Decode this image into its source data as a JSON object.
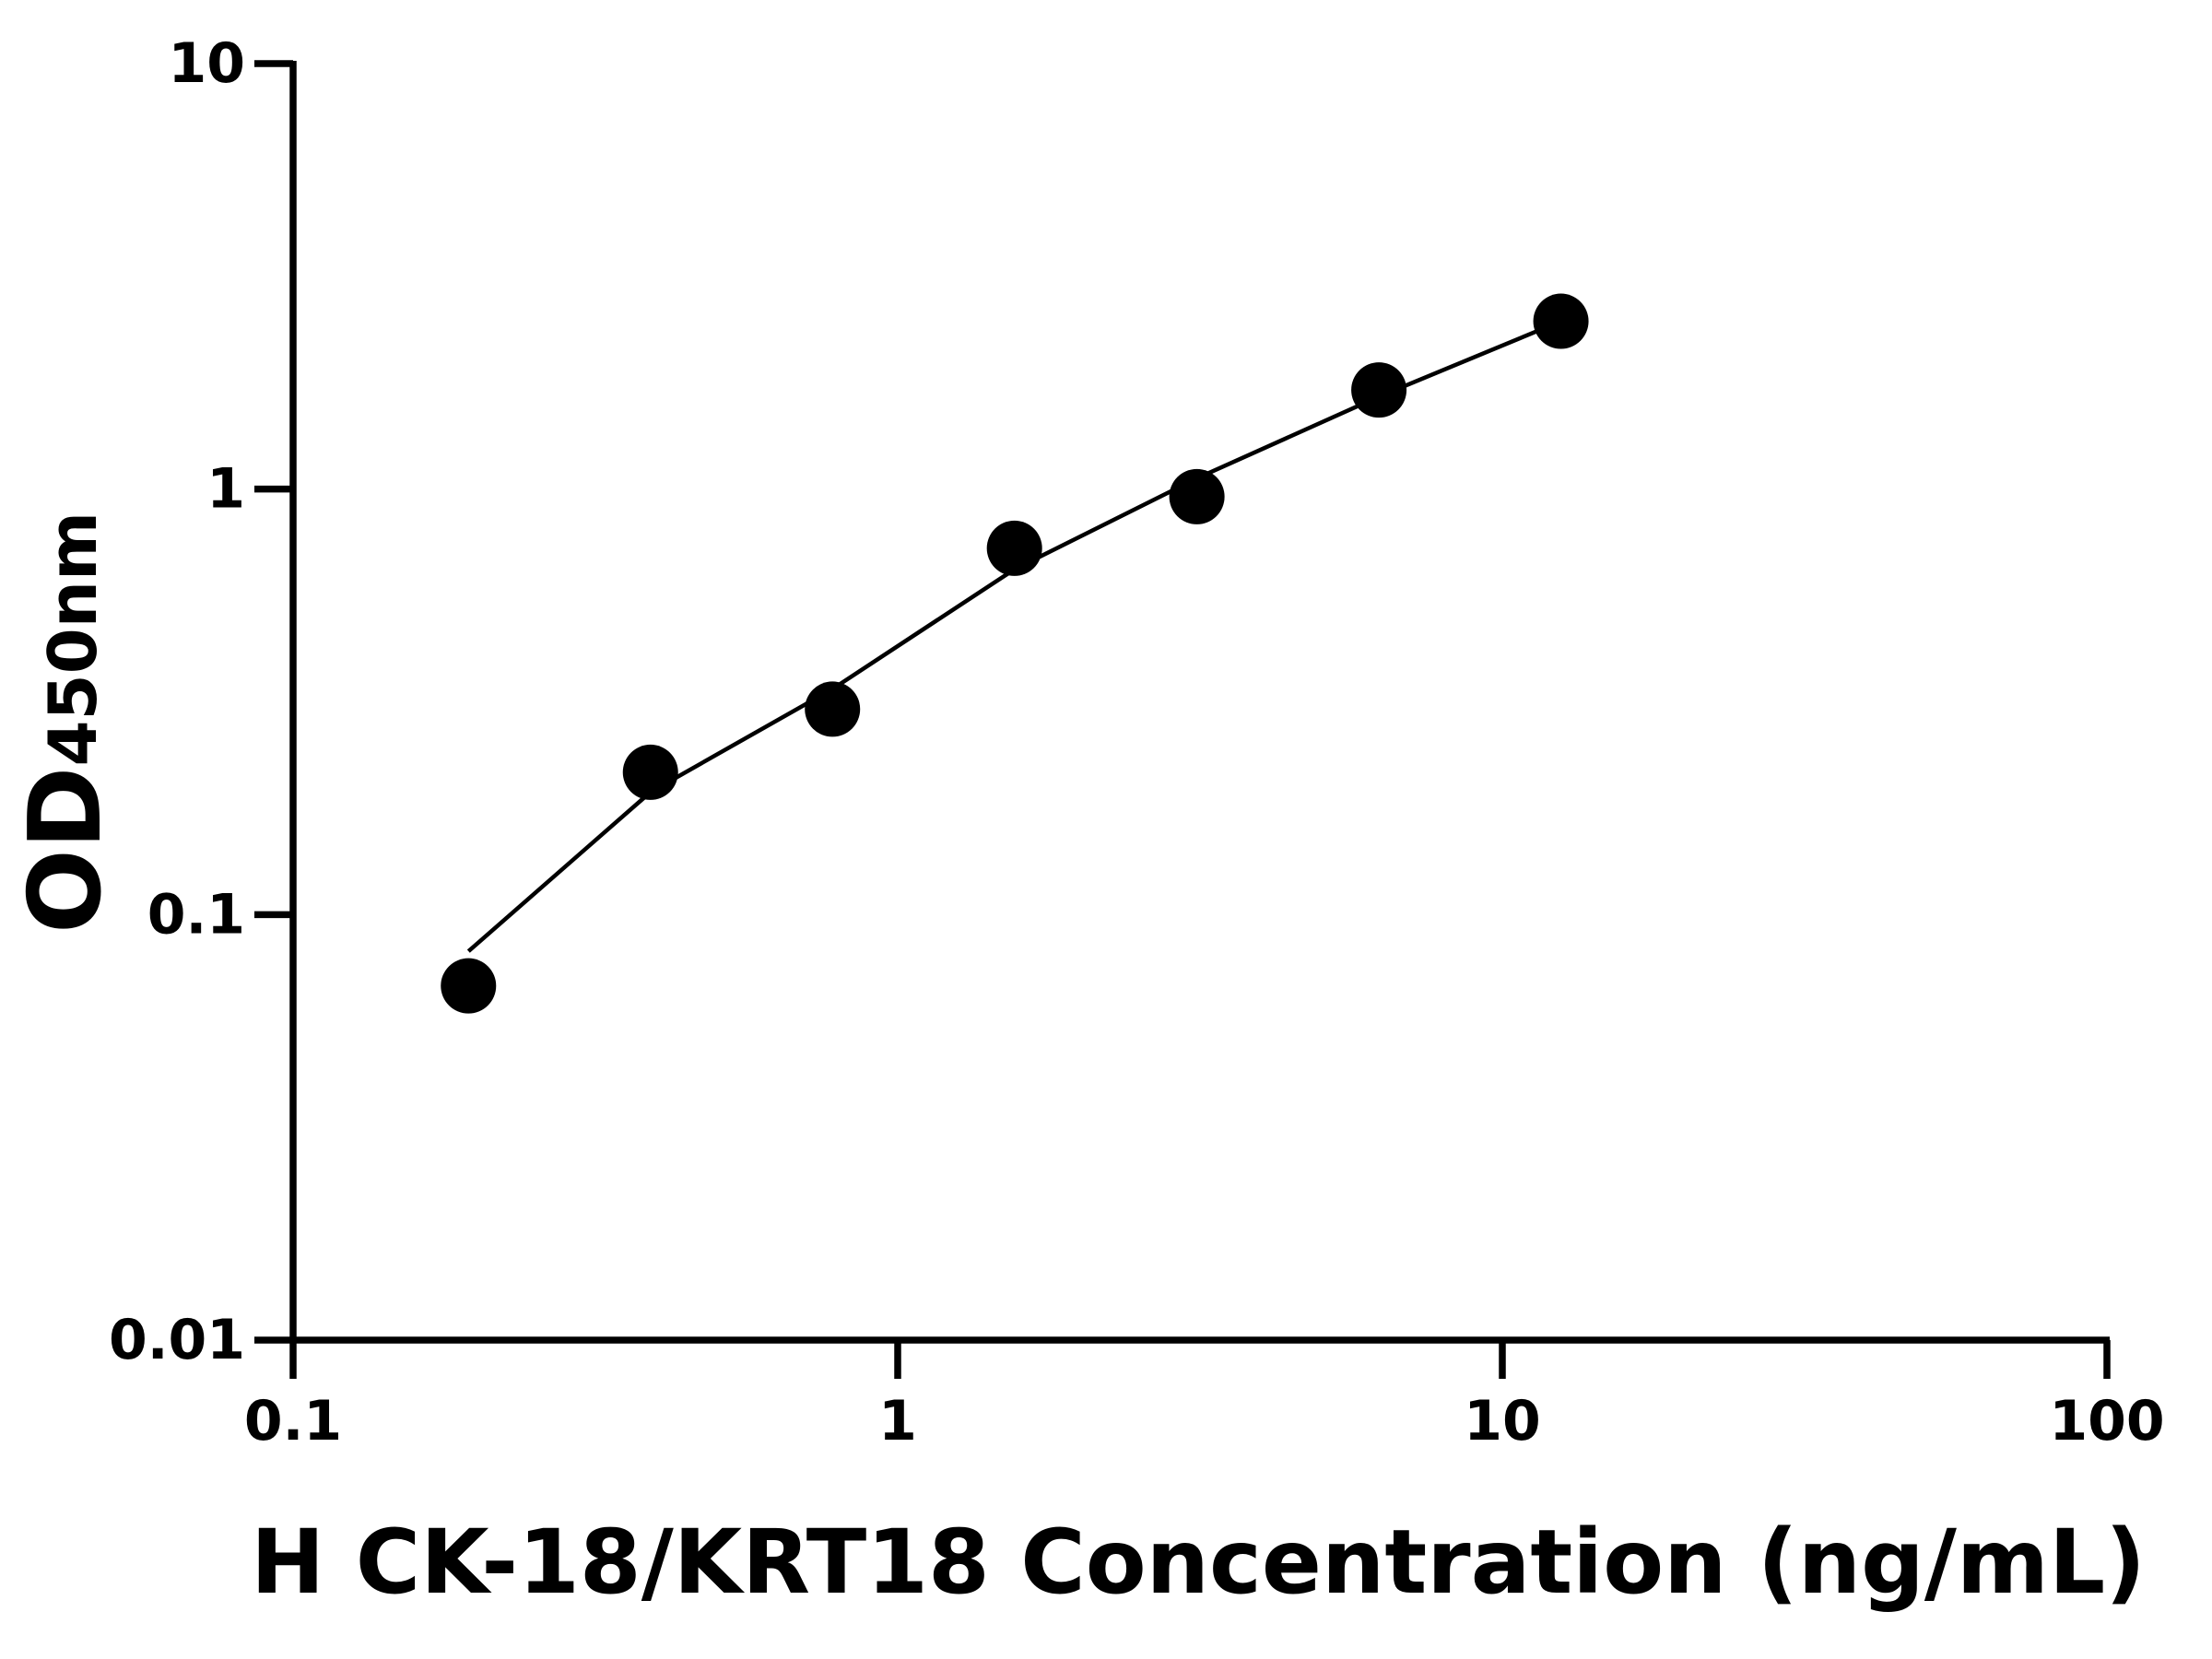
{
  "chart_data": {
    "type": "scatter",
    "xlabel": "H CK-18/KRT18 Concentration (ng/mL)",
    "ylabel": "OD",
    "ylabel_sub": "450nm",
    "xscale": "log",
    "yscale": "log",
    "xlim": [
      0.1,
      100
    ],
    "ylim": [
      0.01,
      10
    ],
    "xticks": [
      0.1,
      1,
      10,
      100
    ],
    "yticks": [
      0.01,
      0.1,
      1,
      10
    ],
    "series": [
      {
        "color": "#000000",
        "x": [
          0.195,
          0.39,
          0.78,
          1.56,
          3.125,
          6.25,
          12.5
        ],
        "values": [
          0.068,
          0.216,
          0.304,
          0.726,
          0.96,
          1.71,
          2.48
        ]
      }
    ],
    "curve": {
      "color": "#000000",
      "x": [
        0.195,
        0.39,
        0.78,
        1.56,
        3.125,
        6.25,
        12.5
      ],
      "values": [
        0.082,
        0.194,
        0.339,
        0.648,
        1.06,
        1.65,
        2.48
      ]
    }
  }
}
